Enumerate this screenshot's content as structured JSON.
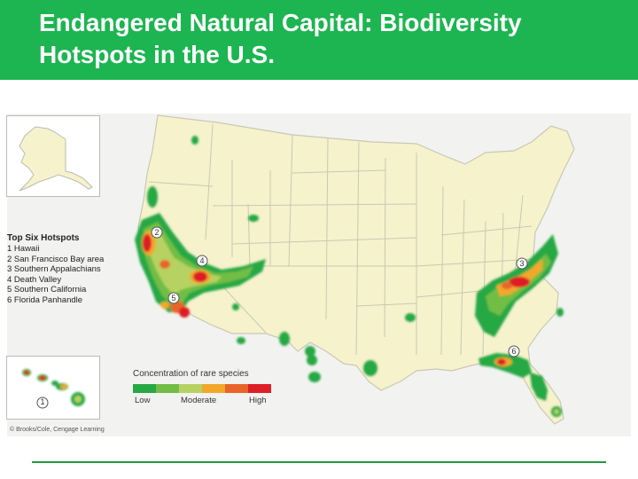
{
  "slide": {
    "title_line1": "Endangered Natural Capital: Biodiversity",
    "title_line2": "Hotspots in the U.S."
  },
  "legend": {
    "title": "Top Six Hotspots",
    "items": [
      "1 Hawaii",
      "2 San Francisco Bay area",
      "3 Southern Appalachians",
      "4 Death Valley",
      "5 Southern California",
      "6 Florida Panhandle"
    ]
  },
  "scale": {
    "title": "Concentration of rare species",
    "colors": [
      "#27a844",
      "#72bd45",
      "#b6d262",
      "#f2a82b",
      "#e8652a",
      "#dd1f26"
    ],
    "low": "Low",
    "moderate": "Moderate",
    "high": "High"
  },
  "markers": {
    "m1": "1",
    "m2": "2",
    "m3": "3",
    "m4": "4",
    "m5": "5",
    "m6": "6"
  },
  "credit": "© Brooks/Cole, Cengage Learning",
  "colors": {
    "title_bar": "#1cb551",
    "land": "#f6f2cc",
    "state_borders": "#c9c8b4",
    "hotspot_high": "#dd1f26",
    "hotspot_low": "#27a844"
  }
}
